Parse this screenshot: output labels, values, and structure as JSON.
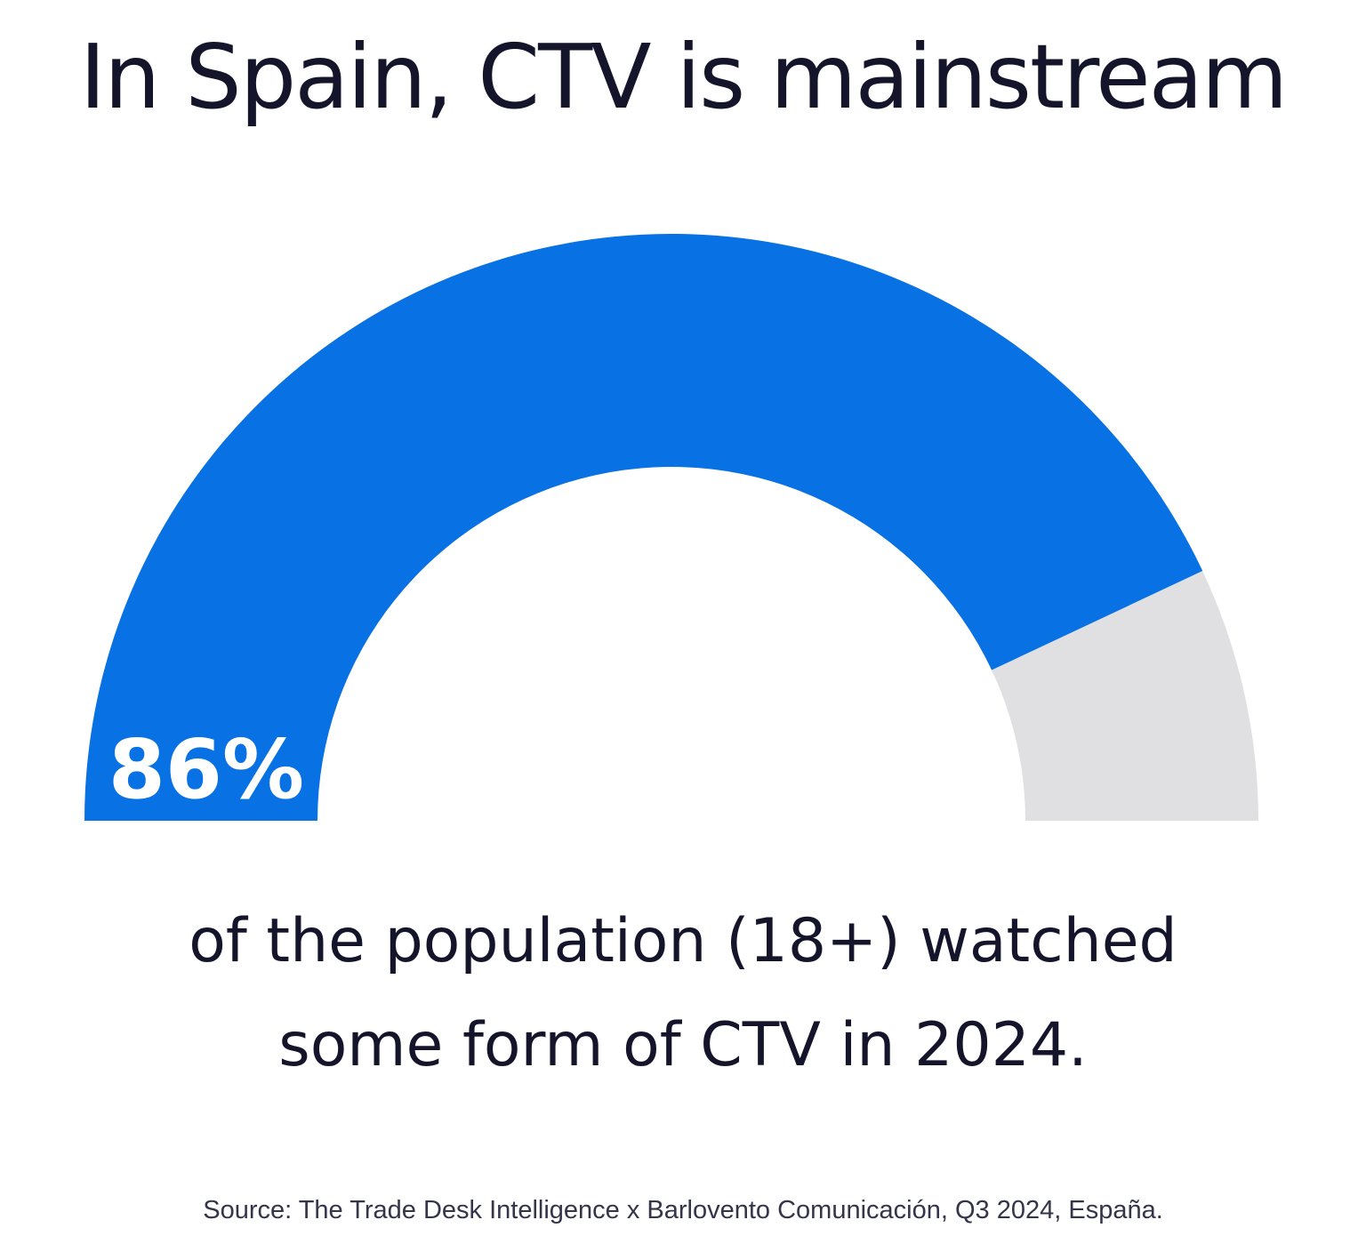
{
  "title": "In Spain, CTV is mainstream",
  "caption": {
    "line1": "of the population (18+) watched",
    "line2": "some form of CTV in 2024."
  },
  "source": "Source: The Trade Desk Intelligence x Barlovento Comunicación, Q3 2024, España.",
  "chart_data": {
    "type": "gauge",
    "value": 86,
    "max": 100,
    "value_label": "86%",
    "colors": {
      "fill": "#0871e3",
      "track": "#e0e0e2",
      "label": "#ffffff"
    }
  }
}
